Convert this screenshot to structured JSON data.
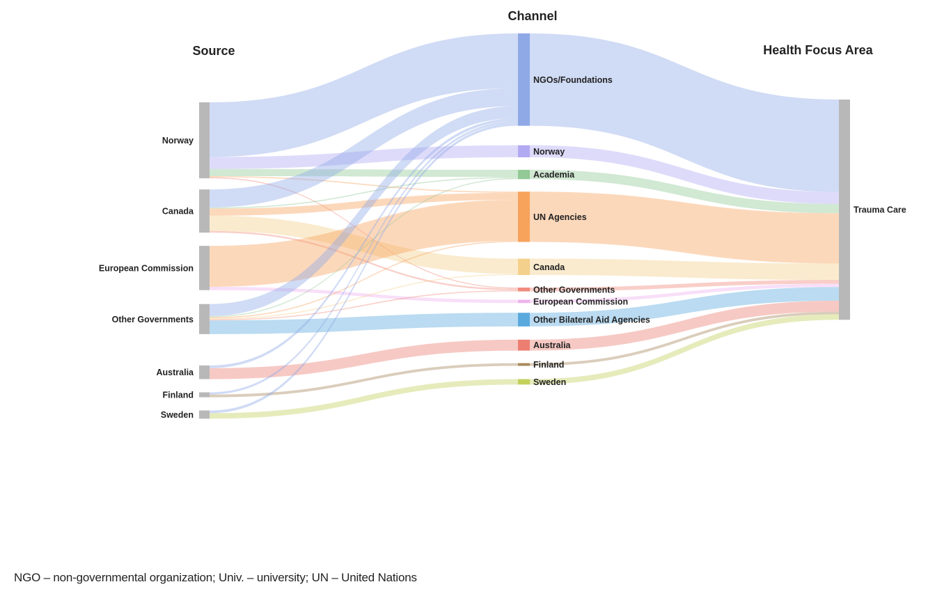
{
  "columns": {
    "source": "Source",
    "channel": "Channel",
    "focus": "Health Focus Area"
  },
  "chart_data": {
    "type": "sankey",
    "columns": [
      "Source",
      "Channel",
      "Health Focus Area"
    ],
    "nodes": {
      "source": [
        {
          "id": "s_norway",
          "label": "Norway"
        },
        {
          "id": "s_canada",
          "label": "Canada"
        },
        {
          "id": "s_ec",
          "label": "European Commission"
        },
        {
          "id": "s_othergov",
          "label": "Other Governments"
        },
        {
          "id": "s_australia",
          "label": "Australia"
        },
        {
          "id": "s_finland",
          "label": "Finland"
        },
        {
          "id": "s_sweden",
          "label": "Sweden"
        }
      ],
      "channel": [
        {
          "id": "c_ngo",
          "label": "NGOs/Foundations",
          "color": "#8fa9e6"
        },
        {
          "id": "c_norway",
          "label": "Norway",
          "color": "#b1a9f2"
        },
        {
          "id": "c_academia",
          "label": "Academia",
          "color": "#92c996"
        },
        {
          "id": "c_un",
          "label": "UN Agencies",
          "color": "#f7a35c"
        },
        {
          "id": "c_canada",
          "label": "Canada",
          "color": "#f3d08b"
        },
        {
          "id": "c_othergov",
          "label": "Other Governments",
          "color": "#f08b7c"
        },
        {
          "id": "c_ec",
          "label": "European Commission",
          "color": "#eeb3ee"
        },
        {
          "id": "c_bilateral",
          "label": "Other Bilateral Aid Agencies",
          "color": "#5aa9de"
        },
        {
          "id": "c_australia",
          "label": "Australia",
          "color": "#ec7f72"
        },
        {
          "id": "c_finland",
          "label": "Finland",
          "color": "#a8895c"
        },
        {
          "id": "c_sweden",
          "label": "Sweden",
          "color": "#c3d05c"
        }
      ],
      "focus": [
        {
          "id": "f_trauma",
          "label": "Trauma Care"
        }
      ]
    },
    "links": [
      {
        "from": "s_norway",
        "to": "c_ngo",
        "value": 10
      },
      {
        "from": "s_norway",
        "to": "c_norway",
        "value": 2.2
      },
      {
        "from": "s_norway",
        "to": "c_academia",
        "value": 1.3
      },
      {
        "from": "s_norway",
        "to": "c_un",
        "value": 0.2
      },
      {
        "from": "s_norway",
        "to": "c_othergov",
        "value": 0.2
      },
      {
        "from": "s_canada",
        "to": "c_ngo",
        "value": 3.3
      },
      {
        "from": "s_canada",
        "to": "c_academia",
        "value": 0.2
      },
      {
        "from": "s_canada",
        "to": "c_un",
        "value": 1.3
      },
      {
        "from": "s_canada",
        "to": "c_canada",
        "value": 2.8
      },
      {
        "from": "s_canada",
        "to": "c_othergov",
        "value": 0.3
      },
      {
        "from": "s_ec",
        "to": "c_un",
        "value": 7.5
      },
      {
        "from": "s_ec",
        "to": "c_ec",
        "value": 0.6
      },
      {
        "from": "s_othergov",
        "to": "c_ngo",
        "value": 2.2
      },
      {
        "from": "s_othergov",
        "to": "c_academia",
        "value": 0.2
      },
      {
        "from": "s_othergov",
        "to": "c_un",
        "value": 0.2
      },
      {
        "from": "s_othergov",
        "to": "c_canada",
        "value": 0.2
      },
      {
        "from": "s_othergov",
        "to": "c_othergov",
        "value": 0.2
      },
      {
        "from": "s_othergov",
        "to": "c_bilateral",
        "value": 2.5
      },
      {
        "from": "s_australia",
        "to": "c_ngo",
        "value": 0.5
      },
      {
        "from": "s_australia",
        "to": "c_australia",
        "value": 2.0
      },
      {
        "from": "s_finland",
        "to": "c_ngo",
        "value": 0.4
      },
      {
        "from": "s_finland",
        "to": "c_finland",
        "value": 0.5
      },
      {
        "from": "s_sweden",
        "to": "c_ngo",
        "value": 0.5
      },
      {
        "from": "s_sweden",
        "to": "c_sweden",
        "value": 1.0
      },
      {
        "from": "c_ngo",
        "to": "f_trauma",
        "value": 16.9
      },
      {
        "from": "c_norway",
        "to": "f_trauma",
        "value": 2.2
      },
      {
        "from": "c_academia",
        "to": "f_trauma",
        "value": 1.7
      },
      {
        "from": "c_un",
        "to": "f_trauma",
        "value": 9.2
      },
      {
        "from": "c_canada",
        "to": "f_trauma",
        "value": 3.0
      },
      {
        "from": "c_othergov",
        "to": "f_trauma",
        "value": 0.7
      },
      {
        "from": "c_ec",
        "to": "f_trauma",
        "value": 0.6
      },
      {
        "from": "c_bilateral",
        "to": "f_trauma",
        "value": 2.5
      },
      {
        "from": "c_australia",
        "to": "f_trauma",
        "value": 2.0
      },
      {
        "from": "c_finland",
        "to": "f_trauma",
        "value": 0.5
      },
      {
        "from": "c_sweden",
        "to": "f_trauma",
        "value": 1.0
      }
    ]
  },
  "footnote": "NGO – non-governmental organization; Univ. – university; UN – United Nations"
}
